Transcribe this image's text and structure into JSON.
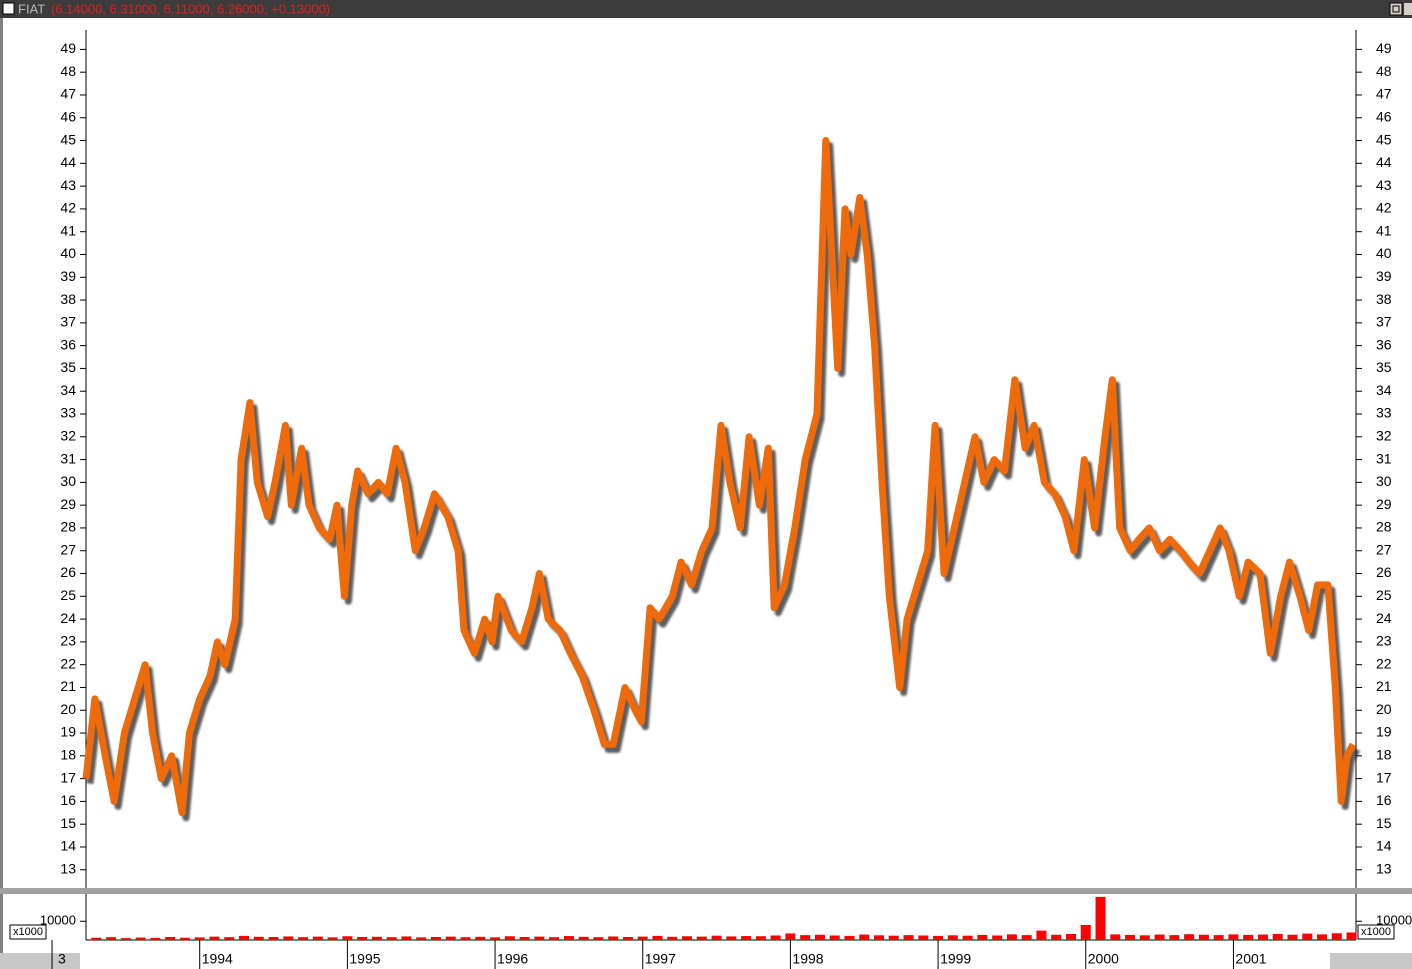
{
  "window": {
    "symbol": "FIAT",
    "quote": "(6.14000, 6.31000, 6.11000, 6.26000, +0.13000)"
  },
  "chart_data": [
    {
      "type": "line",
      "color": "#ee6a0a",
      "x": [
        1993.23,
        1993.29,
        1993.36,
        1993.42,
        1993.49,
        1993.56,
        1993.63,
        1993.68,
        1993.74,
        1993.81,
        1993.88,
        1993.93,
        1994.0,
        1994.07,
        1994.12,
        1994.17,
        1994.24,
        1994.28,
        1994.34,
        1994.39,
        1994.46,
        1994.51,
        1994.58,
        1994.62,
        1994.69,
        1994.74,
        1994.81,
        1994.88,
        1994.93,
        1994.98,
        1995.03,
        1995.07,
        1995.14,
        1995.21,
        1995.27,
        1995.33,
        1995.39,
        1995.46,
        1995.52,
        1995.59,
        1995.68,
        1995.75,
        1995.79,
        1995.86,
        1995.93,
        1995.98,
        1996.02,
        1996.11,
        1996.18,
        1996.25,
        1996.3,
        1996.36,
        1996.44,
        1996.51,
        1996.59,
        1996.67,
        1996.74,
        1996.8,
        1996.88,
        1996.95,
        1996.99,
        1997.05,
        1997.11,
        1997.2,
        1997.26,
        1997.33,
        1997.4,
        1997.47,
        1997.53,
        1997.59,
        1997.66,
        1997.72,
        1997.79,
        1997.85,
        1997.89,
        1997.96,
        1998.03,
        1998.1,
        1998.18,
        1998.24,
        1998.28,
        1998.32,
        1998.37,
        1998.41,
        1998.47,
        1998.52,
        1998.57,
        1998.62,
        1998.67,
        1998.74,
        1998.79,
        1998.86,
        1998.93,
        1998.98,
        1999.04,
        1999.11,
        1999.18,
        1999.25,
        1999.31,
        1999.38,
        1999.45,
        1999.52,
        1999.59,
        1999.65,
        1999.72,
        1999.79,
        1999.86,
        1999.92,
        1999.99,
        2000.06,
        2000.13,
        2000.18,
        2000.23,
        2000.3,
        2000.36,
        2000.43,
        2000.5,
        2000.57,
        2000.64,
        2000.7,
        2000.77,
        2000.84,
        2000.91,
        2000.97,
        2001.04,
        2001.1,
        2001.18,
        2001.25,
        2001.32,
        2001.38,
        2001.45,
        2001.51,
        2001.57,
        2001.64,
        2001.69,
        2001.73,
        2001.77,
        2001.81
      ],
      "values": [
        17,
        20.5,
        18,
        16,
        19,
        20.5,
        22,
        19,
        17,
        18,
        15.5,
        19,
        20.5,
        21.5,
        23,
        22,
        24,
        31,
        33.5,
        30,
        28.5,
        30,
        32.5,
        29,
        31.5,
        29,
        28,
        27.5,
        29,
        25,
        29,
        30.5,
        29.5,
        30,
        29.5,
        31.5,
        30,
        27,
        28,
        29.5,
        28.5,
        27,
        23.5,
        22.5,
        24,
        23,
        25,
        23.5,
        23,
        24.5,
        26,
        24,
        23.5,
        22.5,
        21.5,
        20,
        18.5,
        18.5,
        21,
        20,
        19.5,
        24.5,
        24,
        25,
        26.5,
        25.5,
        27,
        28,
        32.5,
        30,
        28,
        32,
        29,
        31.5,
        24.5,
        25.5,
        28,
        31,
        33,
        45,
        40,
        35,
        42,
        40,
        42.5,
        40,
        36,
        30,
        25,
        21,
        24,
        25.5,
        27,
        32.5,
        26,
        28,
        30,
        32,
        30,
        31,
        30.5,
        34.5,
        31.5,
        32.5,
        30,
        29.5,
        28.5,
        27,
        31,
        28,
        32,
        34.5,
        28,
        27,
        27.5,
        28,
        27,
        27.5,
        27,
        26.5,
        26,
        27,
        28,
        27,
        25,
        26.5,
        26,
        22.5,
        25,
        26.5,
        25,
        23.5,
        25.5,
        25.5,
        21,
        16,
        18,
        18.5
      ],
      "xlim": [
        1993.23,
        2001.83
      ],
      "xticks": [
        {
          "value": 1993,
          "label": "3"
        },
        1994,
        1995,
        1996,
        1997,
        1998,
        1999,
        2000,
        2001
      ],
      "ylim": [
        12.2,
        49.5
      ],
      "yticks": [
        13,
        14,
        15,
        16,
        17,
        18,
        19,
        20,
        21,
        22,
        23,
        24,
        25,
        26,
        27,
        28,
        29,
        30,
        31,
        32,
        33,
        34,
        35,
        36,
        37,
        38,
        39,
        40,
        41,
        42,
        43,
        44,
        45,
        46,
        47,
        48,
        49
      ]
    },
    {
      "type": "bar",
      "color": "#ff0000",
      "multiplier_label": "x1000",
      "x": [
        1993.3,
        1993.4,
        1993.5,
        1993.6,
        1993.7,
        1993.8,
        1993.9,
        1994.0,
        1994.1,
        1994.2,
        1994.3,
        1994.4,
        1994.5,
        1994.6,
        1994.7,
        1994.8,
        1994.9,
        1995.0,
        1995.1,
        1995.2,
        1995.3,
        1995.4,
        1995.5,
        1995.6,
        1995.7,
        1995.8,
        1995.9,
        1996.0,
        1996.1,
        1996.2,
        1996.3,
        1996.4,
        1996.5,
        1996.6,
        1996.7,
        1996.8,
        1996.9,
        1997.0,
        1997.1,
        1997.2,
        1997.3,
        1997.4,
        1997.5,
        1997.6,
        1997.7,
        1997.8,
        1997.9,
        1998.0,
        1998.1,
        1998.2,
        1998.3,
        1998.4,
        1998.5,
        1998.6,
        1998.7,
        1998.8,
        1998.9,
        1999.0,
        1999.1,
        1999.2,
        1999.3,
        1999.4,
        1999.5,
        1999.6,
        1999.7,
        1999.8,
        1999.9,
        2000.0,
        2000.1,
        2000.2,
        2000.3,
        2000.4,
        2000.5,
        2000.6,
        2000.7,
        2000.8,
        2000.9,
        2001.0,
        2001.1,
        2001.2,
        2001.3,
        2001.4,
        2001.5,
        2001.6,
        2001.7,
        2001.8
      ],
      "values": [
        1200,
        1500,
        1000,
        1300,
        1100,
        1600,
        1200,
        1400,
        1800,
        1500,
        2200,
        1700,
        1600,
        1900,
        1500,
        1800,
        1400,
        2000,
        1600,
        1700,
        1500,
        1900,
        1400,
        1600,
        1800,
        1500,
        1700,
        1400,
        2000,
        1600,
        1800,
        1500,
        2100,
        1700,
        1500,
        1900,
        1600,
        1800,
        2200,
        1700,
        2000,
        1800,
        2300,
        1900,
        2100,
        2000,
        2400,
        3500,
        2600,
        2800,
        2400,
        2200,
        2900,
        2500,
        2300,
        2600,
        2400,
        2200,
        2500,
        2300,
        2700,
        2400,
        3000,
        2600,
        5000,
        2800,
        3200,
        8000,
        23000,
        3000,
        2700,
        2500,
        2900,
        2600,
        3100,
        2800,
        2600,
        3000,
        2700,
        2900,
        3200,
        2800,
        3400,
        3000,
        3600,
        4000
      ],
      "ylim": [
        0,
        24000
      ],
      "yticks": [
        10000
      ]
    }
  ]
}
